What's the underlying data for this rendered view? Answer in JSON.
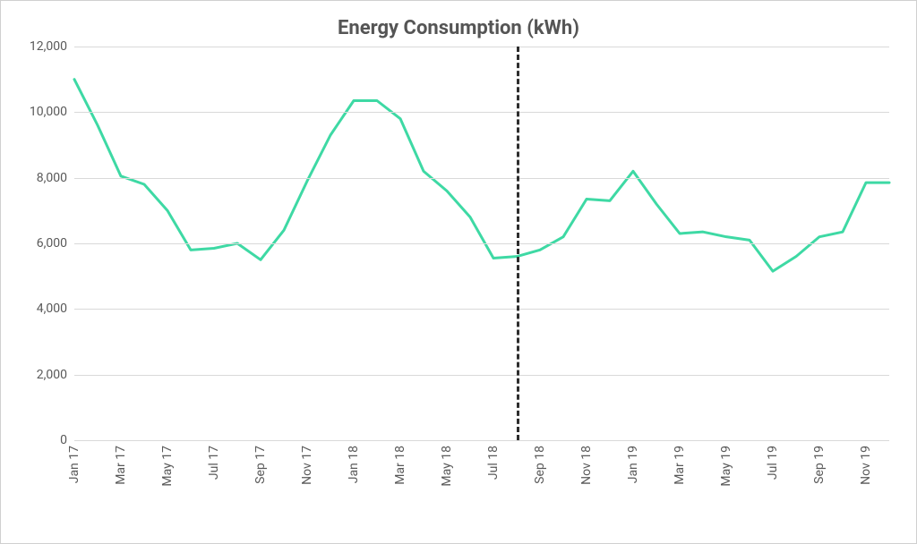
{
  "chart": {
    "type": "line",
    "title": "Energy Consumption (kWh)",
    "title_fontsize": 22,
    "title_color": "#555555",
    "background_color": "#ffffff",
    "border_color": "#d0d0d0",
    "grid_color": "#d9d9d9",
    "tick_label_color": "#595959",
    "tick_label_fontsize": 14,
    "line_color": "#3ed9a4",
    "line_width": 3,
    "divider": {
      "index": 19,
      "color": "#2d2d2d",
      "dash": "6,6",
      "width": 3
    },
    "ylim": [
      0,
      12000
    ],
    "ytick_step": 2000,
    "yticks": [
      0,
      2000,
      4000,
      6000,
      8000,
      10000,
      12000
    ],
    "ytick_labels": [
      "0",
      "2,000",
      "4,000",
      "6,000",
      "8,000",
      "10,000",
      "12,000"
    ],
    "x_categories": [
      "Jan 17",
      "Feb 17",
      "Mar 17",
      "Apr 17",
      "May 17",
      "Jun 17",
      "Jul 17",
      "Aug 17",
      "Sep 17",
      "Oct 17",
      "Nov 17",
      "Dec 17",
      "Jan 18",
      "Feb 18",
      "Mar 18",
      "Apr 18",
      "May 18",
      "Jun 18",
      "Jul 18",
      "Aug 18",
      "Sep 18",
      "Oct 18",
      "Nov 18",
      "Dec 18",
      "Jan 19",
      "Feb 19",
      "Mar 19",
      "Apr 19",
      "May 19",
      "Jun 19",
      "Jul 19",
      "Aug 19",
      "Sep 19",
      "Oct 19",
      "Nov 19",
      "Dec 19"
    ],
    "x_tick_labels": [
      "Jan 17",
      "Mar 17",
      "May 17",
      "Jul 17",
      "Sep 17",
      "Nov 17",
      "Jan 18",
      "Mar 18",
      "May 18",
      "Jul 18",
      "Sep 18",
      "Nov 18",
      "Jan 19",
      "Mar 19",
      "May 19",
      "Jul 19",
      "Sep 19",
      "Nov 19"
    ],
    "x_tick_indices": [
      0,
      2,
      4,
      6,
      8,
      10,
      12,
      14,
      16,
      18,
      20,
      22,
      24,
      26,
      28,
      30,
      32,
      34
    ],
    "values": [
      11000,
      9600,
      8050,
      7800,
      7000,
      5800,
      5850,
      6000,
      5500,
      6400,
      7900,
      9300,
      10350,
      10350,
      9800,
      8200,
      7600,
      6800,
      5550,
      5600,
      5800,
      6200,
      7350,
      7300,
      8200,
      7200,
      6300,
      6350,
      6200,
      6100,
      5150,
      5600,
      6200,
      6350,
      7850,
      7850
    ]
  }
}
